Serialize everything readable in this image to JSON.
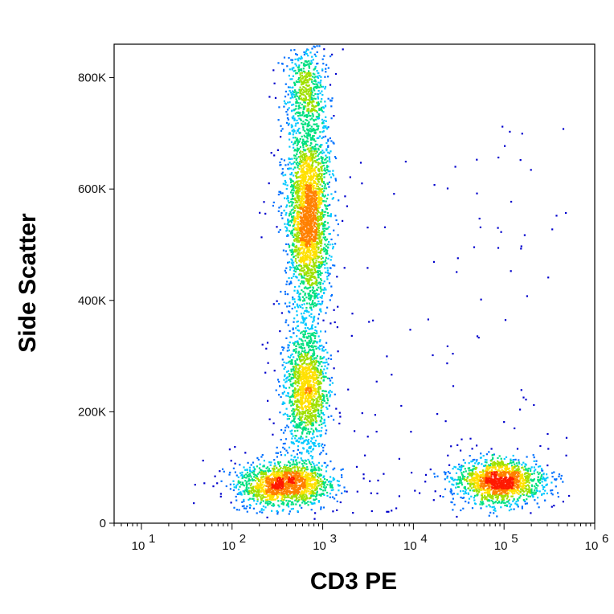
{
  "chart_data": {
    "type": "scatter",
    "subtype": "flow-cytometry-density-dot-plot",
    "title": "",
    "xlabel": "CD3 PE",
    "ylabel": "Side Scatter",
    "x_scale": "log",
    "y_scale": "linear",
    "xlim": [
      5,
      1000000
    ],
    "ylim": [
      0,
      860000
    ],
    "x_ticks": [
      {
        "value": 10,
        "base": "10",
        "exp": "1"
      },
      {
        "value": 100,
        "base": "10",
        "exp": "2"
      },
      {
        "value": 1000,
        "base": "10",
        "exp": "3"
      },
      {
        "value": 10000,
        "base": "10",
        "exp": "4"
      },
      {
        "value": 100000,
        "base": "10",
        "exp": "5"
      },
      {
        "value": 1000000,
        "base": "10",
        "exp": "6"
      }
    ],
    "y_ticks": [
      {
        "value": 0,
        "label": "0"
      },
      {
        "value": 200000,
        "label": "200K"
      },
      {
        "value": 400000,
        "label": "400K"
      },
      {
        "value": 600000,
        "label": "600K"
      },
      {
        "value": 800000,
        "label": "800K"
      }
    ],
    "grid": false,
    "legend": "none",
    "density_colors": [
      "#0000cc",
      "#0070ff",
      "#00c8ff",
      "#00e080",
      "#a0e000",
      "#ffe000",
      "#ff8000",
      "#ff1a00"
    ],
    "populations": [
      {
        "center_x": 700,
        "center_y": 550000,
        "spread_log10_x": 0.1,
        "spread_y": 90000,
        "count": 2600
      },
      {
        "center_x": 650,
        "center_y": 240000,
        "spread_log10_x": 0.1,
        "spread_y": 55000,
        "count": 1300
      },
      {
        "center_x": 380,
        "center_y": 70000,
        "spread_log10_x": 0.22,
        "spread_y": 20000,
        "count": 1500
      },
      {
        "center_x": 90000,
        "center_y": 75000,
        "spread_log10_x": 0.2,
        "spread_y": 20000,
        "count": 1500
      },
      {
        "center_x": 650,
        "center_y": 780000,
        "spread_log10_x": 0.1,
        "spread_y": 40000,
        "count": 500
      }
    ]
  }
}
